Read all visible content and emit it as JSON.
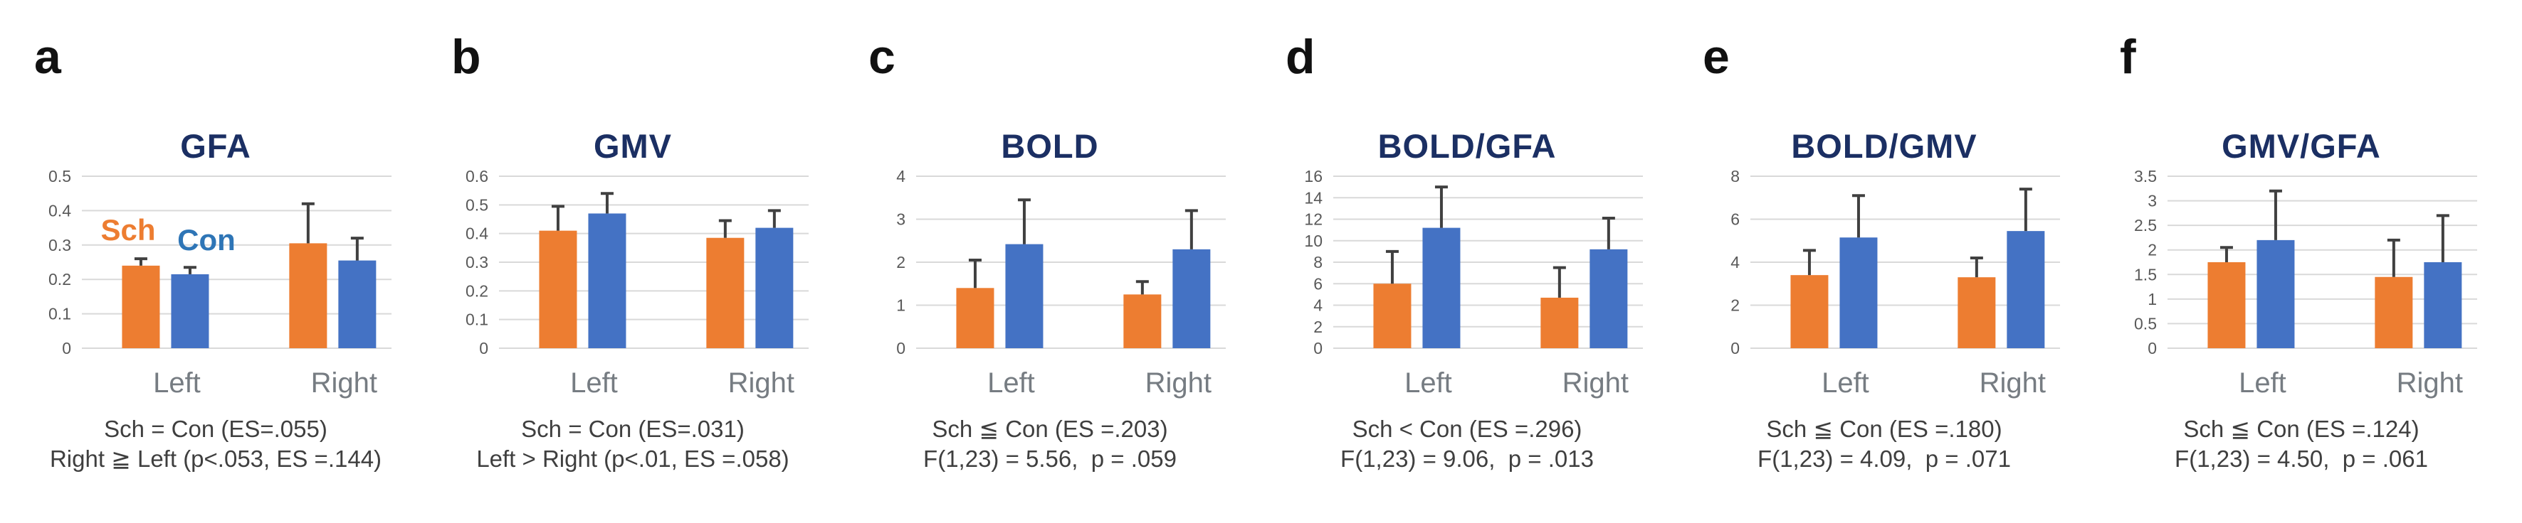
{
  "figure": {
    "legend": {
      "sch_label": "Sch",
      "con_label": "Con",
      "legend_panel": "a",
      "legend_position": "inside-plot-top-left"
    },
    "colors": {
      "sch_bar": "#ED7D31",
      "con_bar": "#4472C4",
      "sch_label": "#ED7D31",
      "con_label": "#2E75B6",
      "title": "#1B2F63",
      "grid": "#D9D9D9",
      "tick": "#595959",
      "xlabel": "#767C82",
      "caption": "#3F3F3F",
      "error_bar": "#404040",
      "letter": "#111111",
      "background": "#FFFFFF"
    }
  },
  "chart_data": [
    {
      "letter": "a",
      "type": "bar",
      "title": "GFA",
      "categories": [
        "Left",
        "Right"
      ],
      "ylim": [
        0,
        0.5
      ],
      "yticks": [
        "0",
        "0.1",
        "0.2",
        "0.3",
        "0.4",
        "0.5"
      ],
      "grid": true,
      "series": [
        {
          "name": "Sch",
          "values": [
            0.24,
            0.305
          ],
          "err_upper": [
            0.26,
            0.42
          ]
        },
        {
          "name": "Con",
          "values": [
            0.215,
            0.255
          ],
          "err_upper": [
            0.235,
            0.32
          ]
        }
      ],
      "caption": [
        "Sch = Con (ES=.055)",
        "Right ≧ Left (p<.053, ES =.144)"
      ],
      "show_series_labels": true
    },
    {
      "letter": "b",
      "type": "bar",
      "title": "GMV",
      "categories": [
        "Left",
        "Right"
      ],
      "ylim": [
        0,
        0.6
      ],
      "yticks": [
        "0",
        "0.1",
        "0.2",
        "0.3",
        "0.4",
        "0.5",
        "0.6"
      ],
      "grid": true,
      "series": [
        {
          "name": "Sch",
          "values": [
            0.41,
            0.385
          ],
          "err_upper": [
            0.495,
            0.445
          ]
        },
        {
          "name": "Con",
          "values": [
            0.47,
            0.42
          ],
          "err_upper": [
            0.54,
            0.48
          ]
        }
      ],
      "caption": [
        "Sch = Con (ES=.031)",
        "Left > Right (p<.01, ES =.058)"
      ],
      "show_series_labels": false
    },
    {
      "letter": "c",
      "type": "bar",
      "title": "BOLD",
      "categories": [
        "Left",
        "Right"
      ],
      "ylim": [
        0,
        4
      ],
      "yticks": [
        "0",
        "1",
        "2",
        "3",
        "4"
      ],
      "grid": true,
      "series": [
        {
          "name": "Sch",
          "values": [
            1.4,
            1.25
          ],
          "err_upper": [
            2.05,
            1.55
          ]
        },
        {
          "name": "Con",
          "values": [
            2.42,
            2.3
          ],
          "err_upper": [
            3.45,
            3.2
          ]
        }
      ],
      "caption": [
        "Sch ≦ Con (ES =.203)",
        "F(1,23) = 5.56,  p = .059"
      ],
      "show_series_labels": false
    },
    {
      "letter": "d",
      "type": "bar",
      "title": "BOLD/GFA",
      "categories": [
        "Left",
        "Right"
      ],
      "ylim": [
        0,
        16
      ],
      "yticks": [
        "0",
        "2",
        "4",
        "6",
        "8",
        "10",
        "12",
        "14",
        "16"
      ],
      "grid": true,
      "series": [
        {
          "name": "Sch",
          "values": [
            6.0,
            4.7
          ],
          "err_upper": [
            9.0,
            7.5
          ]
        },
        {
          "name": "Con",
          "values": [
            11.2,
            9.2
          ],
          "err_upper": [
            15.0,
            12.1
          ]
        }
      ],
      "caption": [
        "Sch < Con (ES =.296)",
        "F(1,23) = 9.06,  p = .013"
      ],
      "show_series_labels": false
    },
    {
      "letter": "e",
      "type": "bar",
      "title": "BOLD/GMV",
      "categories": [
        "Left",
        "Right"
      ],
      "ylim": [
        0,
        8
      ],
      "yticks": [
        "0",
        "2",
        "4",
        "6",
        "8"
      ],
      "grid": true,
      "series": [
        {
          "name": "Sch",
          "values": [
            3.4,
            3.3
          ],
          "err_upper": [
            4.55,
            4.2
          ]
        },
        {
          "name": "Con",
          "values": [
            5.15,
            5.45
          ],
          "err_upper": [
            7.1,
            7.4
          ]
        }
      ],
      "caption": [
        "Sch ≦ Con (ES =.180)",
        "F(1,23) = 4.09,  p = .071"
      ],
      "show_series_labels": false
    },
    {
      "letter": "f",
      "type": "bar",
      "title": "GMV/GFA",
      "categories": [
        "Left",
        "Right"
      ],
      "ylim": [
        0,
        3.5
      ],
      "yticks": [
        "0",
        "0.5",
        "1",
        "1.5",
        "2",
        "2.5",
        "3",
        "3.5"
      ],
      "grid": true,
      "series": [
        {
          "name": "Sch",
          "values": [
            1.75,
            1.45
          ],
          "err_upper": [
            2.05,
            2.2
          ]
        },
        {
          "name": "Con",
          "values": [
            2.2,
            1.75
          ],
          "err_upper": [
            3.2,
            2.7
          ]
        }
      ],
      "caption": [
        "Sch ≦ Con (ES =.124)",
        "F(1,23) = 4.50,  p = .061"
      ],
      "show_series_labels": false
    }
  ]
}
